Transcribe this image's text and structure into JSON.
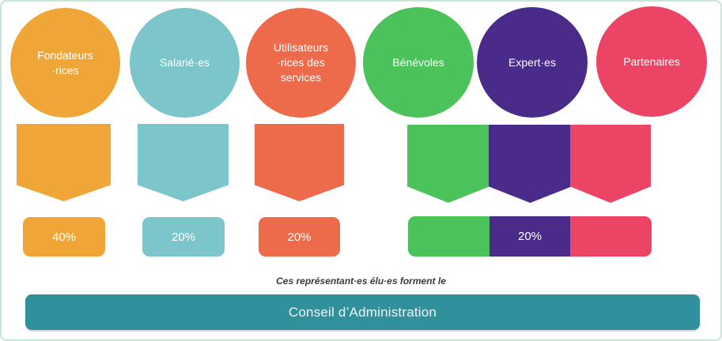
{
  "frame": {
    "background": "#ffffff",
    "border_color": "#c8e6d9"
  },
  "groups": [
    {
      "label": "Fondateurs\n·rices",
      "color": "#f0a637",
      "share": "40%"
    },
    {
      "label": "Salarié·es",
      "color": "#7cc5ca",
      "share": "20%"
    },
    {
      "label": "Utilisateurs\n·rices des\nservices",
      "color": "#ed6a4b",
      "share": "20%"
    },
    {
      "label": "Bénévoles",
      "color": "#4cc35a",
      "share": ""
    },
    {
      "label": "Expert·es",
      "color": "#4b2b8a",
      "share": "20%"
    },
    {
      "label": "Partenaires",
      "color": "#eb4465",
      "share": ""
    }
  ],
  "caption": "Ces représentant·es élu·es forment le",
  "footer": {
    "label": "Conseil d’Administration",
    "color": "#30909b",
    "text_color": "#ffffff"
  }
}
